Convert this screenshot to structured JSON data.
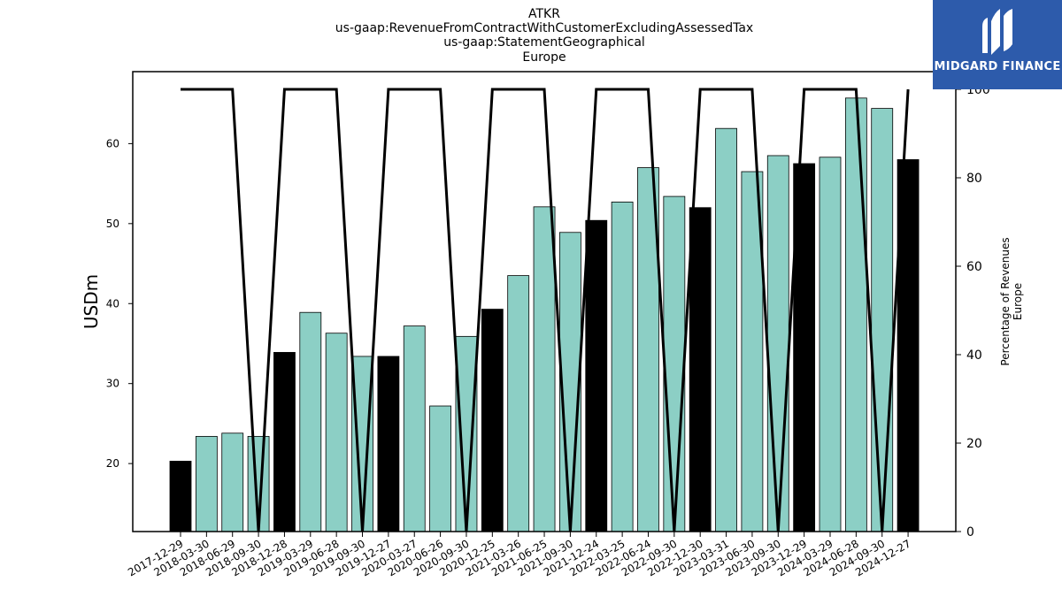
{
  "title_lines": [
    "ATKR",
    "us-gaap:RevenueFromContractWithCustomerExcludingAssessedTax",
    "us-gaap:StatementGeographical",
    "Europe"
  ],
  "logo": {
    "text": "MIDGARD FINANCE"
  },
  "colors": {
    "teal": "#8ccfc5",
    "black": "#000000",
    "logo_bg": "#2d5bab"
  },
  "chart_data": {
    "type": "bar",
    "x": [
      "2017-12-29",
      "2018-03-30",
      "2018-06-29",
      "2018-09-30",
      "2018-12-28",
      "2019-03-29",
      "2019-06-28",
      "2019-09-30",
      "2019-12-27",
      "2020-03-27",
      "2020-06-26",
      "2020-09-30",
      "2020-12-25",
      "2021-03-26",
      "2021-06-25",
      "2021-09-30",
      "2021-12-24",
      "2022-03-25",
      "2022-06-24",
      "2022-09-30",
      "2022-12-30",
      "2023-03-31",
      "2023-06-30",
      "2023-09-30",
      "2023-12-29",
      "2024-03-29",
      "2024-06-28",
      "2024-09-30",
      "2024-12-27"
    ],
    "values": [
      20.3,
      23.4,
      23.8,
      23.4,
      33.9,
      38.9,
      36.3,
      33.4,
      33.4,
      37.2,
      27.2,
      35.9,
      39.3,
      43.5,
      52.1,
      48.9,
      50.4,
      52.7,
      57.0,
      53.4,
      52.0,
      61.9,
      56.5,
      58.5,
      57.5,
      58.3,
      65.7,
      64.4,
      58.0
    ],
    "bar_colors": [
      "black",
      "teal",
      "teal",
      "teal",
      "black",
      "teal",
      "teal",
      "teal",
      "black",
      "teal",
      "teal",
      "teal",
      "black",
      "teal",
      "teal",
      "teal",
      "black",
      "teal",
      "teal",
      "teal",
      "black",
      "teal",
      "teal",
      "teal",
      "black",
      "teal",
      "teal",
      "teal",
      "black"
    ],
    "percentage_series": [
      100,
      100,
      100,
      0,
      100,
      100,
      100,
      0,
      100,
      100,
      100,
      0,
      100,
      100,
      100,
      0,
      100,
      100,
      100,
      0,
      100,
      100,
      100,
      0,
      100,
      100,
      100,
      0,
      100
    ],
    "ylabel": "USDm",
    "ylabel_right": [
      "Percentage of Revenues",
      "Europe"
    ],
    "ylim": [
      11.5,
      69
    ],
    "ylim_right": [
      0,
      104
    ],
    "yticks": [
      20,
      30,
      40,
      50,
      60
    ],
    "yticks_right": [
      0,
      20,
      40,
      60,
      80,
      100
    ]
  }
}
